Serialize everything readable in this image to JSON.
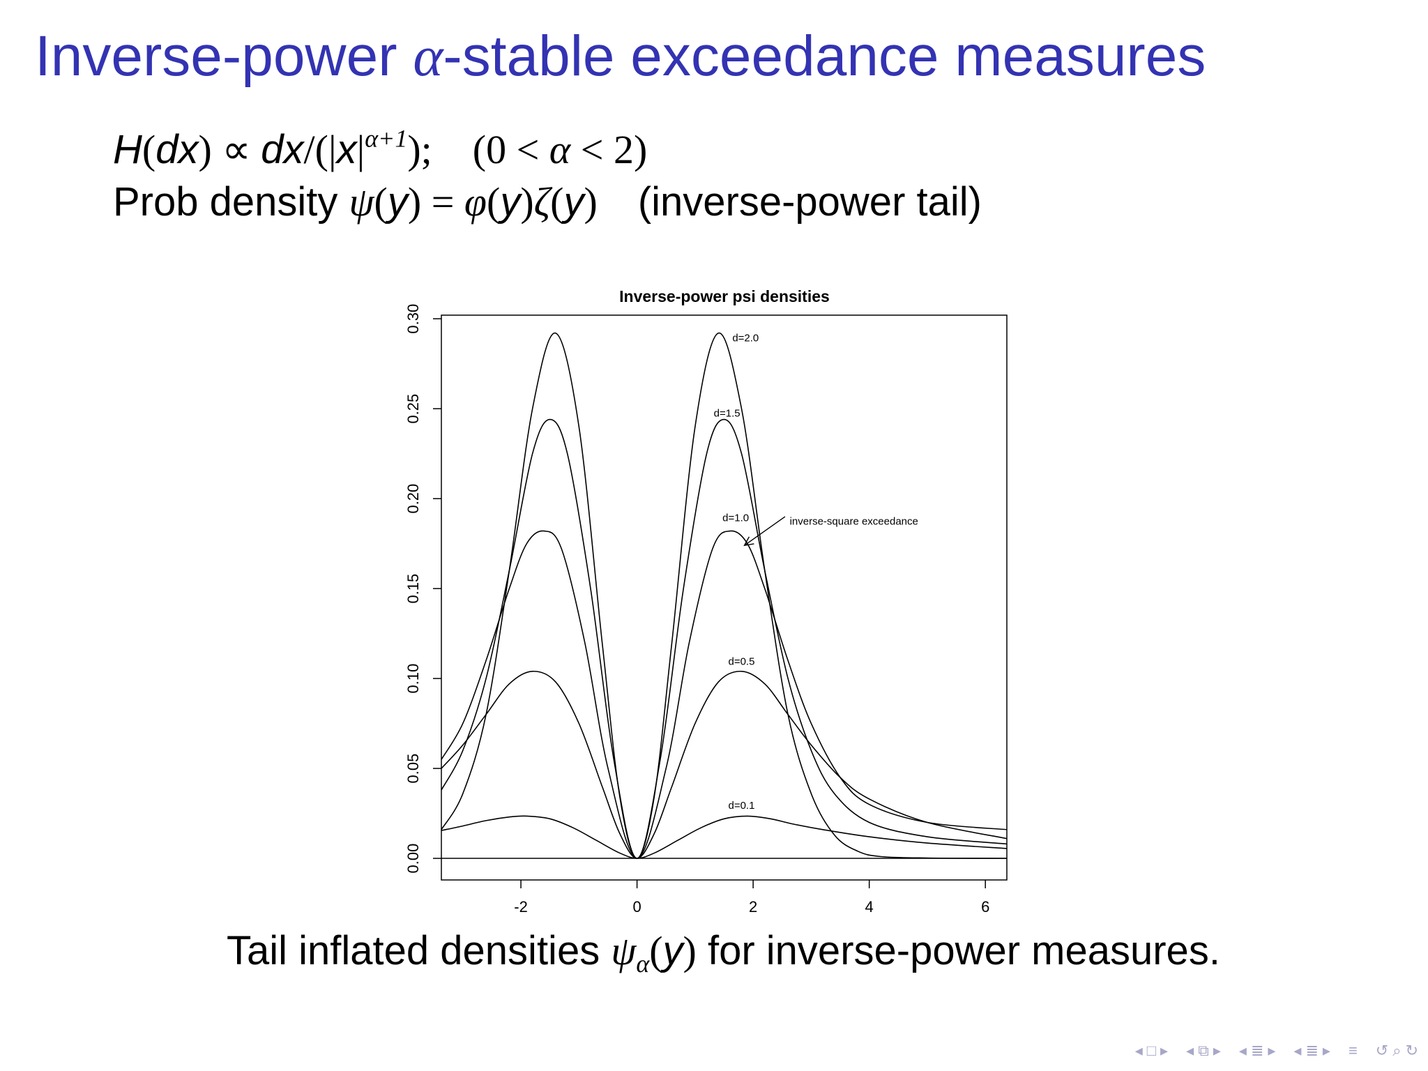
{
  "slide": {
    "title_pre": "Inverse-power ",
    "title_alpha": "α",
    "title_post": "-stable exceedance measures",
    "eq1": {
      "H": "H",
      "dx": "dx",
      "prop": " ∝ ",
      "slash": "/(|",
      "x": "x",
      "bar": "|",
      "exp": "α+1",
      "close": ");",
      "cond_open": "(0 ",
      "lt": "<",
      "alpha": " α ",
      "cond_close": " 2)"
    },
    "eq2": {
      "lead": "Prob density ",
      "psi": "ψ",
      "y1": "y",
      "eq": " = ",
      "phi": "φ",
      "y2": "y",
      "zeta": "ζ",
      "y3": "y",
      "tail": "(inverse-power tail)"
    },
    "caption": {
      "lead": "Tail inflated densities ",
      "psi": "ψ",
      "sub": "α",
      "y": "y",
      "tail": " for inverse-power measures."
    }
  },
  "chart_data": {
    "type": "line",
    "title": "Inverse-power psi densities",
    "xlabel": "",
    "ylabel": "",
    "xlim": [
      -3.37,
      6.37
    ],
    "ylim": [
      -0.012,
      0.302
    ],
    "xticks": [
      -2,
      0,
      2,
      4,
      6
    ],
    "yticks": [
      0.0,
      0.05,
      0.1,
      0.15,
      0.2,
      0.25,
      0.3
    ],
    "xtick_labels": [
      "-2",
      "0",
      "2",
      "4",
      "6"
    ],
    "ytick_labels": [
      "0.00",
      "0.05",
      "0.10",
      "0.15",
      "0.20",
      "0.25",
      "0.30"
    ],
    "grid": false,
    "baseline_y": 0,
    "series": [
      {
        "name": "d=2.0",
        "label_at": [
          1.87,
          0.2875
        ],
        "points": [
          [
            -3.37,
            0.016
          ],
          [
            -3.0,
            0.036
          ],
          [
            -2.6,
            0.08
          ],
          [
            -2.2,
            0.16
          ],
          [
            -1.8,
            0.25
          ],
          [
            -1.4,
            0.292
          ],
          [
            -1.0,
            0.24
          ],
          [
            -0.6,
            0.12
          ],
          [
            -0.3,
            0.035
          ],
          [
            0,
            0
          ],
          [
            0.3,
            0.035
          ],
          [
            0.6,
            0.12
          ],
          [
            1.0,
            0.24
          ],
          [
            1.4,
            0.292
          ],
          [
            1.8,
            0.25
          ],
          [
            2.2,
            0.16
          ],
          [
            2.6,
            0.08
          ],
          [
            3.0,
            0.036
          ],
          [
            3.4,
            0.013
          ],
          [
            3.8,
            0.004
          ],
          [
            4.2,
            0.001
          ],
          [
            5.0,
            0.0002
          ],
          [
            6.37,
            0
          ]
        ]
      },
      {
        "name": "d=1.5",
        "label_at": [
          1.55,
          0.2455
        ],
        "points": [
          [
            -3.37,
            0.038
          ],
          [
            -3.0,
            0.06
          ],
          [
            -2.6,
            0.1
          ],
          [
            -2.2,
            0.16
          ],
          [
            -1.8,
            0.225
          ],
          [
            -1.5,
            0.244
          ],
          [
            -1.2,
            0.225
          ],
          [
            -0.8,
            0.15
          ],
          [
            -0.4,
            0.055
          ],
          [
            0,
            0
          ],
          [
            0.4,
            0.055
          ],
          [
            0.8,
            0.15
          ],
          [
            1.2,
            0.225
          ],
          [
            1.5,
            0.244
          ],
          [
            1.8,
            0.225
          ],
          [
            2.2,
            0.16
          ],
          [
            2.6,
            0.1
          ],
          [
            3.0,
            0.06
          ],
          [
            3.4,
            0.036
          ],
          [
            4.0,
            0.02
          ],
          [
            5.0,
            0.012
          ],
          [
            6.37,
            0.008
          ]
        ]
      },
      {
        "name": "d=1.0",
        "label_at": [
          1.7,
          0.1875
        ],
        "points": [
          [
            -3.37,
            0.055
          ],
          [
            -3.0,
            0.075
          ],
          [
            -2.6,
            0.11
          ],
          [
            -2.2,
            0.15
          ],
          [
            -1.9,
            0.175
          ],
          [
            -1.6,
            0.182
          ],
          [
            -1.3,
            0.172
          ],
          [
            -0.9,
            0.12
          ],
          [
            -0.5,
            0.05
          ],
          [
            0,
            0
          ],
          [
            0.5,
            0.05
          ],
          [
            0.9,
            0.12
          ],
          [
            1.3,
            0.172
          ],
          [
            1.6,
            0.182
          ],
          [
            1.9,
            0.175
          ],
          [
            2.2,
            0.15
          ],
          [
            2.6,
            0.11
          ],
          [
            3.0,
            0.075
          ],
          [
            3.5,
            0.045
          ],
          [
            4.0,
            0.03
          ],
          [
            5.0,
            0.02
          ],
          [
            6.37,
            0.016
          ]
        ]
      },
      {
        "name": "d=0.5",
        "label_at": [
          1.8,
          0.1075
        ],
        "points": [
          [
            -3.37,
            0.05
          ],
          [
            -3.0,
            0.063
          ],
          [
            -2.6,
            0.08
          ],
          [
            -2.2,
            0.097
          ],
          [
            -1.8,
            0.104
          ],
          [
            -1.4,
            0.098
          ],
          [
            -1.0,
            0.075
          ],
          [
            -0.6,
            0.04
          ],
          [
            -0.3,
            0.014
          ],
          [
            0,
            0
          ],
          [
            0.3,
            0.014
          ],
          [
            0.6,
            0.04
          ],
          [
            1.0,
            0.075
          ],
          [
            1.4,
            0.098
          ],
          [
            1.8,
            0.104
          ],
          [
            2.2,
            0.097
          ],
          [
            2.6,
            0.08
          ],
          [
            3.0,
            0.063
          ],
          [
            3.5,
            0.045
          ],
          [
            4.0,
            0.033
          ],
          [
            5.0,
            0.02
          ],
          [
            6.37,
            0.011
          ]
        ]
      },
      {
        "name": "d=0.1",
        "label_at": [
          1.8,
          0.0275
        ],
        "points": [
          [
            -3.37,
            0.0155
          ],
          [
            -3.0,
            0.018
          ],
          [
            -2.6,
            0.021
          ],
          [
            -2.2,
            0.023
          ],
          [
            -1.9,
            0.0235
          ],
          [
            -1.5,
            0.022
          ],
          [
            -1.1,
            0.017
          ],
          [
            -0.7,
            0.01
          ],
          [
            -0.3,
            0.003
          ],
          [
            0,
            0
          ],
          [
            0.3,
            0.003
          ],
          [
            0.7,
            0.01
          ],
          [
            1.1,
            0.017
          ],
          [
            1.5,
            0.022
          ],
          [
            1.9,
            0.0235
          ],
          [
            2.3,
            0.022
          ],
          [
            2.7,
            0.019
          ],
          [
            3.2,
            0.016
          ],
          [
            4.0,
            0.012
          ],
          [
            5.0,
            0.0085
          ],
          [
            6.37,
            0.0055
          ]
        ]
      }
    ],
    "annotation": {
      "text": "inverse-square exceedance",
      "text_at": [
        2.63,
        0.1855
      ],
      "arrow_from": [
        2.55,
        0.19
      ],
      "arrow_to": [
        1.85,
        0.174
      ]
    }
  }
}
